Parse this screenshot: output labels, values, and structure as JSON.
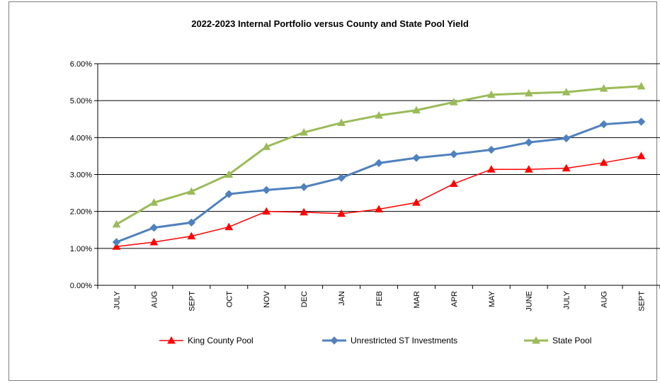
{
  "chart_data": {
    "type": "line",
    "title": "2022-2023 Internal Portfolio versus County and State Pool Yield",
    "categories": [
      "JULY",
      "AUG",
      "SEPT",
      "OCT",
      "NOV",
      "DEC",
      "JAN",
      "FEB",
      "MAR",
      "APR",
      "MAY",
      "JUNE",
      "JULY",
      "AUG",
      "SEPT"
    ],
    "ylim": [
      0,
      6
    ],
    "y_ticks": [
      "0.00%",
      "1.00%",
      "2.00%",
      "3.00%",
      "4.00%",
      "5.00%",
      "6.00%"
    ],
    "grid": "horizontal",
    "legend_position": "bottom",
    "series": [
      {
        "name": "King County Pool",
        "color": "#ff0000",
        "marker": "triangle",
        "values": [
          1.05,
          1.17,
          1.33,
          1.58,
          2.0,
          1.98,
          1.94,
          2.06,
          2.24,
          2.75,
          3.14,
          3.14,
          3.17,
          3.32,
          3.5
        ]
      },
      {
        "name": "Unrestricted ST Investments",
        "color": "#4f81bd",
        "marker": "diamond",
        "values": [
          1.17,
          1.56,
          1.7,
          2.47,
          2.58,
          2.66,
          2.91,
          3.31,
          3.45,
          3.55,
          3.67,
          3.87,
          3.98,
          4.36,
          4.43
        ]
      },
      {
        "name": "State Pool",
        "color": "#9bbb59",
        "marker": "triangle",
        "values": [
          1.65,
          2.24,
          2.54,
          3.0,
          3.75,
          4.14,
          4.4,
          4.6,
          4.74,
          4.96,
          5.16,
          5.2,
          5.23,
          5.33,
          5.39
        ]
      }
    ]
  }
}
